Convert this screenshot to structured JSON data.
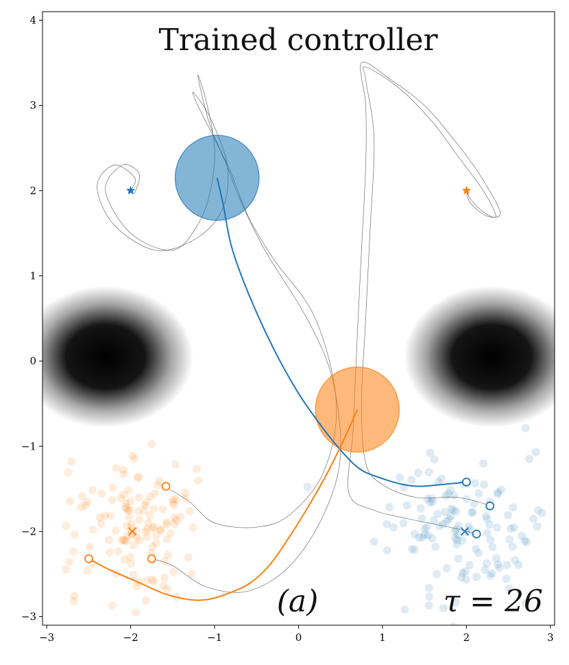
{
  "chart_data": {
    "type": "scatter",
    "title": "Trained controller",
    "panel_label": "(a)",
    "tau_label": "τ = 26",
    "xlim": [
      -3.05,
      3.05
    ],
    "ylim": [
      -3.1,
      4.1
    ],
    "x_ticks": [
      -3,
      -2,
      -1,
      0,
      1,
      2,
      3
    ],
    "y_ticks": [
      -3,
      -2,
      -1,
      0,
      1,
      2,
      3,
      4
    ],
    "tick_labels_x": [
      "−3",
      "−2",
      "−1",
      "0",
      "1",
      "2",
      "3"
    ],
    "tick_labels_y": [
      "−3",
      "−2",
      "−1",
      "0",
      "1",
      "2",
      "3",
      "4"
    ],
    "colors": {
      "blue": "#1f77b4",
      "orange": "#ff7f0e",
      "gray": "#555555"
    },
    "obstacles": [
      {
        "name": "left-obstacle",
        "center": [
          -2.3,
          0.05
        ],
        "spread": [
          0.55,
          0.32
        ]
      },
      {
        "name": "right-obstacle",
        "center": [
          2.3,
          0.05
        ],
        "spread": [
          0.55,
          0.32
        ]
      }
    ],
    "agents": [
      {
        "name": "blue-agent",
        "color": "#1f77b4",
        "center": [
          -0.97,
          2.15
        ],
        "radius": 0.5,
        "goal": [
          -2.0,
          2.0
        ]
      },
      {
        "name": "orange-agent",
        "color": "#ff7f0e",
        "center": [
          0.7,
          -0.57
        ],
        "radius": 0.5,
        "goal": [
          2.0,
          2.0
        ]
      }
    ],
    "main_trajectories": [
      {
        "name": "blue-trajectory",
        "color": "#1f77b4",
        "points": [
          [
            -0.97,
            2.15
          ],
          [
            -0.9,
            1.85
          ],
          [
            -0.8,
            1.35
          ],
          [
            -0.6,
            0.8
          ],
          [
            -0.3,
            0.15
          ],
          [
            0,
            -0.38
          ],
          [
            0.3,
            -0.8
          ],
          [
            0.55,
            -1.1
          ],
          [
            0.75,
            -1.28
          ],
          [
            1.0,
            -1.38
          ],
          [
            1.25,
            -1.45
          ],
          [
            1.45,
            -1.47
          ],
          [
            1.7,
            -1.45
          ],
          [
            2.0,
            -1.42
          ]
        ]
      },
      {
        "name": "orange-trajectory",
        "color": "#ff7f0e",
        "points": [
          [
            0.7,
            -0.57
          ],
          [
            0.55,
            -0.9
          ],
          [
            0.35,
            -1.3
          ],
          [
            0.15,
            -1.65
          ],
          [
            -0.1,
            -2.05
          ],
          [
            -0.35,
            -2.4
          ],
          [
            -0.6,
            -2.62
          ],
          [
            -0.9,
            -2.75
          ],
          [
            -1.1,
            -2.8
          ],
          [
            -1.3,
            -2.8
          ],
          [
            -1.6,
            -2.73
          ],
          [
            -1.9,
            -2.6
          ],
          [
            -2.25,
            -2.45
          ],
          [
            -2.5,
            -2.32
          ]
        ]
      }
    ],
    "gray_trajectories": [
      {
        "points": [
          [
            -1.6,
            -1.47
          ],
          [
            -1.3,
            -1.65
          ],
          [
            -1.0,
            -1.9
          ],
          [
            -0.5,
            -1.95
          ],
          [
            -0.1,
            -1.8
          ],
          [
            0.3,
            -1.3
          ],
          [
            0.45,
            -0.5
          ],
          [
            0.2,
            0.5
          ],
          [
            -0.3,
            1.2
          ],
          [
            -0.6,
            1.7
          ],
          [
            -0.8,
            2.2
          ],
          [
            -1.05,
            2.75
          ],
          [
            -1.2,
            3.35
          ],
          [
            -1.1,
            3.05
          ],
          [
            -1.0,
            2.5
          ],
          [
            -1.05,
            2.0
          ],
          [
            -1.2,
            1.6
          ],
          [
            -1.5,
            1.3
          ],
          [
            -2.0,
            1.5
          ],
          [
            -2.3,
            2.0
          ],
          [
            -2.1,
            2.3
          ],
          [
            -1.9,
            2.2
          ],
          [
            -1.95,
            1.98
          ],
          [
            -2.0,
            2.0
          ]
        ]
      },
      {
        "points": [
          [
            -1.75,
            -2.32
          ],
          [
            -1.5,
            -2.4
          ],
          [
            -1.1,
            -2.65
          ],
          [
            -0.6,
            -2.7
          ],
          [
            -0.1,
            -2.4
          ],
          [
            0.3,
            -1.8
          ],
          [
            0.5,
            -1.1
          ],
          [
            0.4,
            -0.2
          ],
          [
            0.1,
            0.5
          ],
          [
            -0.4,
            1.3
          ],
          [
            -0.7,
            1.9
          ],
          [
            -0.9,
            2.4
          ],
          [
            -1.2,
            3.0
          ],
          [
            -1.25,
            3.15
          ],
          [
            -1.05,
            2.85
          ],
          [
            -0.85,
            2.3
          ],
          [
            -0.9,
            1.8
          ],
          [
            -1.2,
            1.45
          ],
          [
            -1.7,
            1.3
          ],
          [
            -2.2,
            1.6
          ],
          [
            -2.4,
            2.05
          ],
          [
            -2.2,
            2.3
          ],
          [
            -1.95,
            2.15
          ],
          [
            -2.0,
            2.0
          ]
        ]
      },
      {
        "points": [
          [
            2.3,
            -1.7
          ],
          [
            1.9,
            -1.6
          ],
          [
            1.4,
            -1.6
          ],
          [
            1.0,
            -1.45
          ],
          [
            0.8,
            -1.2
          ],
          [
            0.75,
            -0.5
          ],
          [
            0.8,
            0.5
          ],
          [
            0.85,
            1.5
          ],
          [
            0.9,
            2.6
          ],
          [
            0.8,
            3.3
          ],
          [
            0.8,
            3.45
          ],
          [
            1.2,
            3.2
          ],
          [
            1.6,
            2.8
          ],
          [
            1.9,
            2.4
          ],
          [
            2.2,
            2.0
          ],
          [
            2.35,
            1.7
          ],
          [
            2.2,
            1.75
          ],
          [
            2.05,
            1.9
          ],
          [
            2.0,
            2.0
          ]
        ]
      },
      {
        "points": [
          [
            2.12,
            -2.03
          ],
          [
            1.8,
            -1.95
          ],
          [
            1.3,
            -1.85
          ],
          [
            0.9,
            -1.75
          ],
          [
            0.6,
            -1.55
          ],
          [
            0.65,
            -0.8
          ],
          [
            0.7,
            0.3
          ],
          [
            0.75,
            1.3
          ],
          [
            0.8,
            2.3
          ],
          [
            0.8,
            3.0
          ],
          [
            0.75,
            3.5
          ],
          [
            1.1,
            3.3
          ],
          [
            1.5,
            3.0
          ],
          [
            1.85,
            2.6
          ],
          [
            2.15,
            2.2
          ],
          [
            2.4,
            1.75
          ],
          [
            2.25,
            1.7
          ],
          [
            2.05,
            1.85
          ],
          [
            2.0,
            2.0
          ]
        ]
      }
    ],
    "start_markers": [
      {
        "color": "#1f77b4",
        "points": [
          [
            2.0,
            -1.42
          ],
          [
            2.28,
            -1.7
          ],
          [
            2.12,
            -2.03
          ]
        ]
      },
      {
        "color": "#ff7f0e",
        "points": [
          [
            -1.58,
            -1.47
          ],
          [
            -2.5,
            -2.32
          ],
          [
            -1.75,
            -2.32
          ]
        ]
      }
    ],
    "x_markers": [
      {
        "color": "#1f77b4",
        "point": [
          1.98,
          -2.0
        ]
      },
      {
        "color": "#ff7f0e",
        "point": [
          -1.98,
          -2.0
        ]
      }
    ],
    "star_markers": [
      {
        "color": "#1f77b4",
        "point": [
          -2.0,
          2.0
        ]
      },
      {
        "color": "#ff7f0e",
        "point": [
          2.0,
          2.0
        ]
      }
    ],
    "scatter_clouds": [
      {
        "color": "#1f77b4",
        "center": [
          2.0,
          -2.0
        ],
        "spread": [
          0.45,
          0.42
        ],
        "count": 130
      },
      {
        "color": "#ff7f0e",
        "center": [
          -2.0,
          -2.0
        ],
        "spread": [
          0.45,
          0.42
        ],
        "count": 130
      }
    ]
  }
}
